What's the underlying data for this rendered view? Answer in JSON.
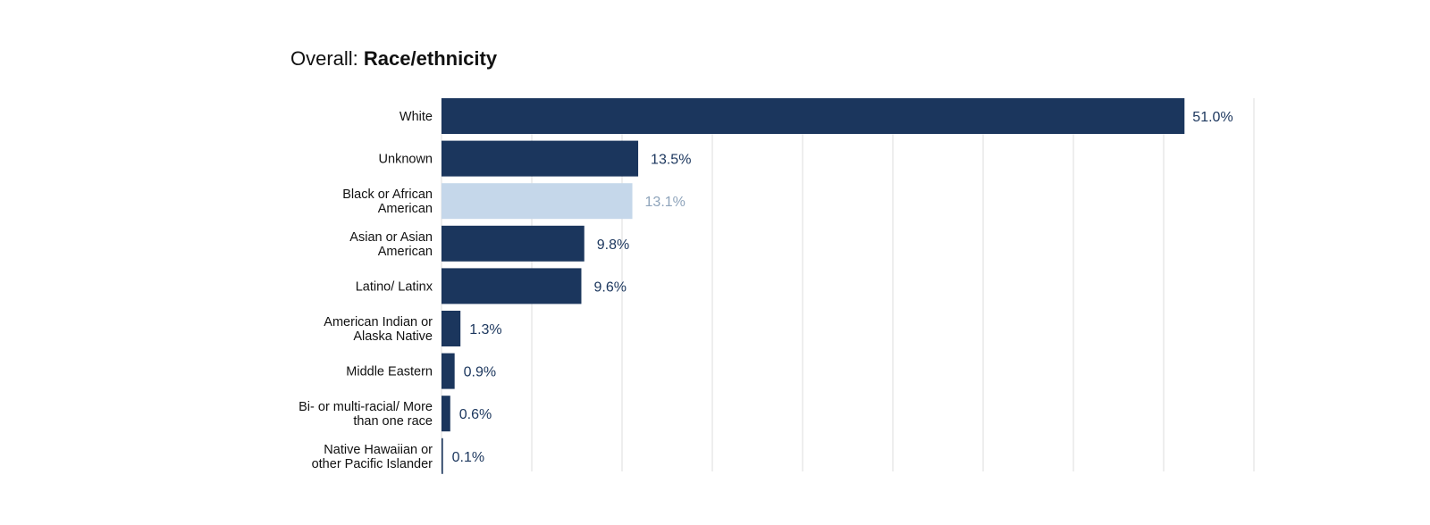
{
  "title": {
    "prefix": "Overall:",
    "main": "Race/ethnicity"
  },
  "chart_data": {
    "type": "bar",
    "orientation": "horizontal",
    "title": "Overall: Race/ethnicity",
    "categories": [
      "White",
      "Unknown",
      "Black or African American",
      "Asian or Asian American",
      "Latino/ Latinx",
      "American Indian or Alaska Native",
      "Middle Eastern",
      "Bi- or multi-racial/ More than one race",
      "Native Hawaiian or other Pacific Islander"
    ],
    "category_lines": [
      [
        "White"
      ],
      [
        "Unknown"
      ],
      [
        "Black or African",
        "American"
      ],
      [
        "Asian or Asian",
        "American"
      ],
      [
        "Latino/ Latinx"
      ],
      [
        "American Indian or",
        "Alaska Native"
      ],
      [
        "Middle Eastern"
      ],
      [
        "Bi- or multi-racial/ More",
        "than one race"
      ],
      [
        "Native Hawaiian or",
        "other Pacific Islander"
      ]
    ],
    "values": [
      51.0,
      13.5,
      13.1,
      9.8,
      9.6,
      1.3,
      0.9,
      0.6,
      0.1
    ],
    "value_labels": [
      "51.0%",
      "13.5%",
      "13.1%",
      "9.8%",
      "9.6%",
      "1.3%",
      "0.9%",
      "0.6%",
      "0.1%"
    ],
    "highlight_index": 2,
    "xlim": [
      0,
      56
    ],
    "grid": true,
    "colors": {
      "bar": "#1b365d",
      "bar_highlight": "#c5d7ea",
      "label": "#1b365d",
      "label_highlight": "#8ea4bb",
      "grid": "#dddddd"
    }
  }
}
